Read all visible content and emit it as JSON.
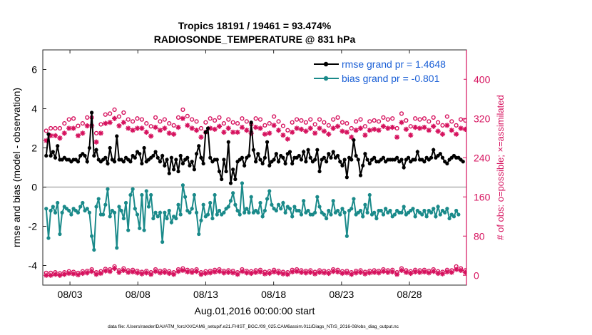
{
  "chart_data": {
    "type": "line",
    "title_line1": "Tropics 18191 / 19461 = 93.474%",
    "title_line2": "RADIOSONDE_TEMPERATURE @ 831 hPa",
    "xlabel": "Aug.01,2016 00:00:00 start",
    "ylabel_left": "rmse and bias (model - observation)",
    "ylabel_right": "# of obs: o=possible; ×=assimilated",
    "footer": "data file: /Users/raeder/DAI/ATM_forcXX/CAM6_setup/f.e21.FHIST_BGC.f09_025.CAM6assim.011/Diags_NTrS_2016-08/obs_diag_output.nc",
    "xlim": [
      1,
      32.2
    ],
    "ylim_left": [
      -5,
      7
    ],
    "ylim_right": [
      -20,
      460
    ],
    "x_ticks": [
      3,
      8,
      13,
      18,
      23,
      28
    ],
    "x_tick_labels": [
      "08/03",
      "08/08",
      "08/13",
      "08/18",
      "08/23",
      "08/28"
    ],
    "y_left_ticks": [
      -4,
      -2,
      0,
      2,
      4,
      6
    ],
    "y_left_tick_labels": [
      "-4",
      "-2",
      "0",
      "2",
      "4",
      "6"
    ],
    "y_right_ticks": [
      0,
      80,
      160,
      240,
      320,
      400
    ],
    "y_right_tick_labels": [
      "0",
      "80",
      "160",
      "240",
      "320",
      "400"
    ],
    "zero_line": 0,
    "colors": {
      "rmse": "#000000",
      "bias": "#1a8a8a",
      "obs": "#d6125e",
      "legend_text": "#1a5fd6",
      "zero_line": "#b0b0b0",
      "axis": "#262626"
    },
    "series": [
      {
        "name": "rmse grand pr = 1.4648",
        "axis": "left",
        "values": [
          1.6,
          2.7,
          1.6,
          1.8,
          1.5,
          2.1,
          1.4,
          1.4,
          1.5,
          1.4,
          1.4,
          1.3,
          1.4,
          1.4,
          1.3,
          1.6,
          1.7,
          1.6,
          1.3,
          2.0,
          3.8,
          1.6,
          1.9,
          1.4,
          1.3,
          1.4,
          1.5,
          1.2,
          2.0,
          1.4,
          1.3,
          2.6,
          1.4,
          1.4,
          1.3,
          1.5,
          1.4,
          1.3,
          1.6,
          1.5,
          1.8,
          1.7,
          1.2,
          2.0,
          1.3,
          1.4,
          1.5,
          1.6,
          1.8,
          1.5,
          1.3,
          1.6,
          1.1,
          1.4,
          0.7,
          1.5,
          0.9,
          1.4,
          0.8,
          1.6,
          1.2,
          1.4,
          1.5,
          1.1,
          1.3,
          0.9,
          1.7,
          2.1,
          1.5,
          1.2,
          2.8,
          3.0,
          1.5,
          1.3,
          1.4,
          1.4,
          0.8,
          0.4,
          1.4,
          0.8,
          2.3,
          0.2,
          0.9,
          0.4,
          1.3,
          1.4,
          1.5,
          1.1,
          1.5,
          1.6,
          3.3,
          1.9,
          1.3,
          1.7,
          1.4,
          1.2,
          1.5,
          2.3,
          1.1,
          1.3,
          1.4,
          1.7,
          1.3,
          1.6,
          1.5,
          1.2,
          1.7,
          1.8,
          1.2,
          1.5,
          1.5,
          1.6,
          1.4,
          1.8,
          1.3,
          1.9,
          1.5,
          1.3,
          1.4,
          1.9,
          0.8,
          1.4,
          1.5,
          1.3,
          1.7,
          1.5,
          1.8,
          1.5,
          1.6,
          1.3,
          1.1,
          1.4,
          0.5,
          1.5,
          1.4,
          2.4,
          1.6,
          1.4,
          0.6,
          1.1,
          1.7,
          1.4,
          1.2,
          1.4,
          1.5,
          1.3,
          1.3,
          1.4,
          1.5,
          1.3,
          1.4,
          1.4,
          1.4,
          1.4,
          1.5,
          1.3,
          1.4,
          1.0,
          1.4,
          1.5,
          1.3,
          1.4,
          1.4,
          1.8,
          1.4,
          1.4,
          1.3,
          1.5,
          1.4,
          1.5,
          1.9,
          1.5,
          1.6,
          1.7,
          1.5,
          1.3,
          1.2,
          1.4,
          1.5,
          1.6,
          1.5,
          1.5,
          1.4,
          1.3
        ]
      },
      {
        "name": "bias grand pr = -0.801",
        "axis": "left",
        "values": [
          -1.1,
          -2.6,
          -1.2,
          -1.0,
          -1.3,
          -0.8,
          -2.4,
          -1.3,
          -1.0,
          -1.1,
          -1.2,
          -1.4,
          -1.1,
          -1.2,
          -1.3,
          -1.0,
          -0.8,
          -1.2,
          -1.1,
          -1.3,
          -2.5,
          -3.2,
          -1.0,
          -0.6,
          -1.4,
          -1.4,
          -0.9,
          -0.1,
          -1.5,
          -1.2,
          -1.3,
          -3.1,
          -1.0,
          -1.2,
          -1.6,
          -0.8,
          -2.2,
          -0.4,
          -0.1,
          -1.1,
          -1.4,
          -2.1,
          -0.4,
          -2.2,
          -0.2,
          -1.0,
          -0.4,
          -1.6,
          -1.3,
          -1.5,
          -1.3,
          -2.8,
          -1.3,
          -1.6,
          -1.2,
          -1.8,
          -1.5,
          -1.6,
          -0.9,
          -1.4,
          0.1,
          -0.5,
          -1.2,
          -1.3,
          -1.1,
          -0.4,
          -1.3,
          -2.4,
          -1.7,
          -0.9,
          -1.5,
          -1.4,
          -0.8,
          -1.6,
          -0.4,
          -1.4,
          -1.2,
          -1.4,
          -1.3,
          -1.1,
          -1.0,
          -0.7,
          -0.3,
          -0.9,
          -1.2,
          -1.4,
          0.2,
          -1.3,
          -1.1,
          -1.3,
          -0.5,
          -1.3,
          -1.2,
          -1.3,
          -0.8,
          -1.5,
          -1.2,
          -0.6,
          -0.2,
          -0.9,
          -1.1,
          -1.2,
          -0.9,
          -1.1,
          -0.8,
          -1.3,
          -1.0,
          -1.1,
          -1.5,
          -1.0,
          -1.2,
          -1.2,
          -1.4,
          -0.7,
          -1.3,
          -1.2,
          -1.4,
          -1.4,
          -1.3,
          -0.5,
          -1.0,
          -1.3,
          -1.4,
          -1.6,
          -1.2,
          -1.4,
          -0.7,
          -1.3,
          -1.2,
          -1.4,
          -1.1,
          -1.3,
          -2.5,
          -1.2,
          -1.1,
          -0.6,
          -1.4,
          -1.3,
          -1.2,
          -1.5,
          -0.9,
          -1.3,
          -0.4,
          -1.4,
          -1.3,
          -1.6,
          -1.2,
          -1.2,
          -1.4,
          -1.1,
          -1.3,
          -1.2,
          -1.5,
          -1.4,
          -1.2,
          -1.3,
          -1.3,
          -1.0,
          -1.4,
          -1.3,
          -1.2,
          -1.1,
          -1.5,
          -1.2,
          -1.3,
          -1.4,
          -1.2,
          -1.5,
          -1.2,
          -1.3,
          -1.1,
          -1.5,
          -1.0,
          -1.4,
          -1.2,
          -1.3,
          -1.1,
          -1.6,
          -1.4,
          -1.5,
          -1.2,
          -1.4
        ]
      }
    ],
    "obs_possible": {
      "name": "possible",
      "axis": "right",
      "values": [
        295,
        316,
        300,
        330,
        300,
        315,
        300,
        325,
        310,
        340,
        318,
        330,
        320,
        345,
        305,
        338,
        310,
        346,
        322,
        302,
        322,
        298,
        290,
        316,
        308,
        302,
        328,
        292,
        330,
        318,
        338,
        304,
        324,
        313,
        332,
        312,
        318,
        300,
        314,
        330,
        320,
        342,
        318,
        332,
        310,
        330,
        304,
        322,
        322,
        302,
        314,
        300,
        318,
        328,
        310,
        335,
        306,
        322,
        322,
        296,
        338,
        310,
        325,
        308,
        318,
        300,
        314,
        324,
        300,
        318,
        312,
        328,
        320,
        305,
        316,
        300,
        322,
        296,
        310,
        325,
        318,
        316,
        312,
        318,
        310,
        318,
        320,
        302,
        314,
        318,
        308,
        324,
        320,
        300,
        318,
        314,
        306,
        322,
        310,
        318,
        324,
        302,
        314,
        325,
        305,
        318,
        296,
        318,
        312,
        324,
        318,
        300,
        316,
        322,
        312,
        306,
        318,
        322,
        308,
        320,
        318,
        300,
        312,
        318,
        306,
        314,
        318,
        300,
        322,
        326,
        312,
        316,
        310,
        322,
        300,
        318,
        314,
        330,
        318,
        326,
        304,
        320,
        314,
        300,
        316,
        310,
        314,
        318,
        322,
        304,
        318,
        298,
        320,
        312,
        300,
        316,
        330,
        296,
        316,
        328,
        304,
        312,
        320,
        292,
        318,
        302,
        320,
        302,
        314,
        310,
        322,
        318,
        312,
        320,
        306,
        310,
        324,
        300,
        314,
        318,
        306,
        312,
        318,
        320,
        316,
        312,
        298,
        310
      ]
    },
    "obs_assimilated": {
      "name": "assimilated",
      "axis": "right",
      "values": [
        275,
        300,
        285,
        315,
        285,
        300,
        280,
        310,
        290,
        325,
        300,
        310,
        300,
        328,
        285,
        320,
        290,
        330,
        305,
        282,
        305,
        280,
        272,
        298,
        290,
        282,
        310,
        272,
        312,
        300,
        320,
        285,
        305,
        295,
        312,
        292,
        300,
        282,
        296,
        312,
        300,
        324,
        300,
        312,
        292,
        310,
        284,
        302,
        302,
        284,
        296,
        280,
        300,
        310,
        290,
        318,
        288,
        302,
        302,
        278,
        320,
        290,
        306,
        290,
        300,
        282,
        296,
        306,
        282,
        300,
        292,
        310,
        300,
        286,
        298,
        280,
        304,
        278,
        292,
        306,
        300,
        298,
        292,
        300,
        292,
        300,
        302,
        284,
        296,
        300,
        290,
        306,
        302,
        282,
        300,
        296,
        288,
        304,
        290,
        300,
        306,
        284,
        296,
        306,
        286,
        300,
        278,
        300,
        292,
        306,
        300,
        282,
        298,
        304,
        294,
        288,
        300,
        304,
        290,
        302,
        300,
        282,
        294,
        300,
        288,
        296,
        300,
        282,
        304,
        308,
        294,
        298,
        292,
        304,
        282,
        300,
        296,
        312,
        300,
        308,
        286,
        302,
        296,
        282,
        298,
        292,
        296,
        300,
        304,
        286,
        300,
        280,
        302,
        294,
        282,
        298,
        312,
        278,
        298,
        310,
        286,
        294,
        302,
        274,
        300,
        284,
        302,
        284,
        296,
        292,
        304,
        300,
        294,
        302,
        288,
        292,
        306,
        282,
        296,
        300,
        288,
        294,
        300,
        302,
        298,
        294,
        280,
        292
      ]
    },
    "obs_possible_bottom": {
      "name": "possible (low)",
      "axis": "right",
      "values": [
        5,
        8,
        5,
        10,
        6,
        9,
        4,
        12,
        6,
        10,
        8,
        14,
        7,
        16,
        5,
        12,
        8,
        20,
        9,
        6,
        12,
        10,
        6,
        11,
        8,
        5,
        13,
        7,
        12,
        9,
        18,
        8,
        10,
        7,
        14,
        9,
        10,
        6,
        11,
        12,
        9,
        15,
        7,
        13,
        9,
        11,
        6,
        10,
        12,
        7,
        9,
        6,
        10,
        13,
        8,
        11,
        6,
        10,
        12,
        6,
        14,
        8,
        11,
        7,
        10,
        6,
        12,
        9,
        6,
        10,
        8,
        12,
        9,
        7,
        11,
        6,
        12,
        8,
        9,
        11,
        10,
        8,
        9,
        11,
        6,
        10,
        12,
        7,
        9,
        10,
        8,
        12,
        10,
        6,
        11,
        9,
        7,
        12,
        8,
        10,
        11,
        6,
        9,
        12,
        7,
        10,
        6,
        9,
        11,
        8,
        12,
        6,
        10,
        11,
        9,
        8,
        10,
        12,
        7,
        11,
        10,
        6,
        9,
        11,
        8,
        10,
        12,
        7,
        11,
        12,
        8,
        10,
        9,
        11,
        6,
        10,
        9,
        14,
        10,
        12,
        7,
        11,
        9,
        6,
        10,
        8,
        9,
        11,
        12,
        7,
        10,
        6,
        11,
        9,
        6,
        10,
        14,
        7,
        10,
        12,
        8,
        9,
        11,
        6,
        10,
        8,
        11,
        7,
        9,
        10,
        12,
        9,
        8,
        10,
        7,
        9,
        11,
        6,
        10,
        25,
        18,
        8,
        14,
        40,
        10,
        32,
        22,
        8
      ]
    },
    "obs_assimilated_bottom": {
      "name": "assimilated (low)",
      "axis": "right",
      "values": [
        0,
        4,
        0,
        6,
        2,
        5,
        0,
        8,
        2,
        6,
        4,
        10,
        3,
        12,
        1,
        8,
        4,
        16,
        5,
        2,
        8,
        6,
        2,
        7,
        4,
        1,
        9,
        3,
        8,
        5,
        14,
        4,
        6,
        3,
        10,
        5,
        6,
        2,
        7,
        8,
        5,
        11,
        3,
        9,
        5,
        7,
        2,
        6,
        8,
        3,
        5,
        2,
        6,
        9,
        4,
        7,
        2,
        6,
        8,
        2,
        10,
        4,
        7,
        3,
        6,
        2,
        8,
        5,
        2,
        6,
        4,
        8,
        5,
        3,
        7,
        2,
        8,
        4,
        5,
        7,
        6,
        4,
        5,
        7,
        2,
        6,
        8,
        3,
        5,
        6,
        4,
        8,
        6,
        2,
        7,
        5,
        3,
        8,
        4,
        6,
        7,
        2,
        5,
        8,
        3,
        6,
        2,
        5,
        7,
        4,
        8,
        2,
        6,
        7,
        5,
        4,
        6,
        8,
        3,
        7,
        6,
        2,
        5,
        7,
        4,
        6,
        8,
        3,
        7,
        8,
        4,
        6,
        5,
        7,
        2,
        6,
        5,
        10,
        6,
        8,
        3,
        7,
        5,
        2,
        6,
        4,
        5,
        7,
        8,
        3,
        6,
        2,
        7,
        5,
        2,
        6,
        10,
        3,
        6,
        8,
        4,
        5,
        7,
        2,
        6,
        4,
        7,
        3,
        5,
        6,
        8,
        5,
        4,
        6,
        3,
        5,
        7,
        2,
        6,
        20,
        12,
        4,
        10,
        30,
        6,
        26,
        16,
        2
      ]
    },
    "legend": {
      "position": "top-right",
      "entries": [
        "rmse grand pr = 1.4648",
        "bias grand pr = -0.801"
      ]
    }
  }
}
